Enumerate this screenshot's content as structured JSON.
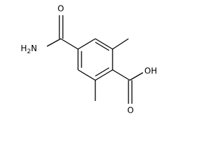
{
  "atoms": {
    "amide_oxygen": "O",
    "amide_nitrogen": {
      "main": "H",
      "subscript": "2",
      "tail": "N"
    },
    "acid_carbonyl_oxygen": "O",
    "acid_hydroxyl": "OH"
  }
}
